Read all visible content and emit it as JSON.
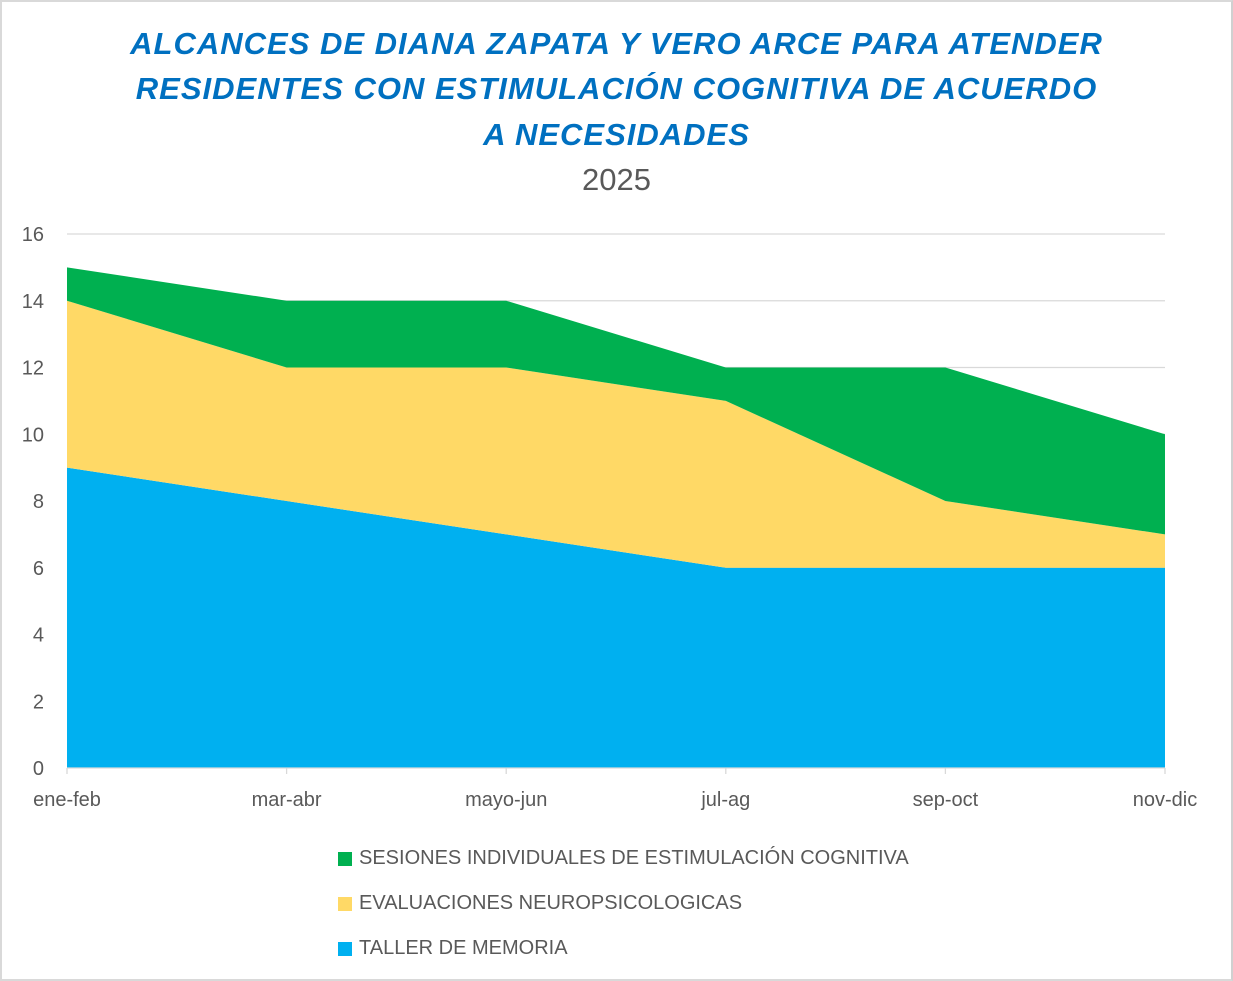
{
  "chart_data": {
    "type": "area",
    "stacked": true,
    "title_lines": [
      "ALCANCES DE DIANA ZAPATA Y VERO ARCE PARA ATENDER",
      "RESIDENTES CON ESTIMULACIÓN COGNITIVA DE ACUERDO",
      "A NECESIDADES"
    ],
    "subtitle": "2025",
    "categories": [
      "ene-feb",
      "mar-abr",
      "mayo-jun",
      "jul-ag",
      "sep-oct",
      "nov-dic"
    ],
    "ylim": [
      0,
      16
    ],
    "yticks": [
      0,
      2,
      4,
      6,
      8,
      10,
      12,
      14,
      16
    ],
    "grid": true,
    "legend_position": "bottom",
    "series": [
      {
        "name": "TALLER DE MEMORIA",
        "color": "#00b0f0",
        "values": [
          9,
          8,
          7,
          6,
          6,
          6
        ]
      },
      {
        "name": "EVALUACIONES NEUROPSICOLOGICAS",
        "color": "#ffd966",
        "values": [
          5,
          4,
          5,
          5,
          2,
          1
        ]
      },
      {
        "name": "SESIONES INDIVIDUALES DE ESTIMULACIÓN COGNITIVA",
        "color": "#00b050",
        "values": [
          1,
          2,
          2,
          1,
          4,
          3
        ]
      }
    ],
    "legend_order": [
      2,
      1,
      0
    ]
  }
}
